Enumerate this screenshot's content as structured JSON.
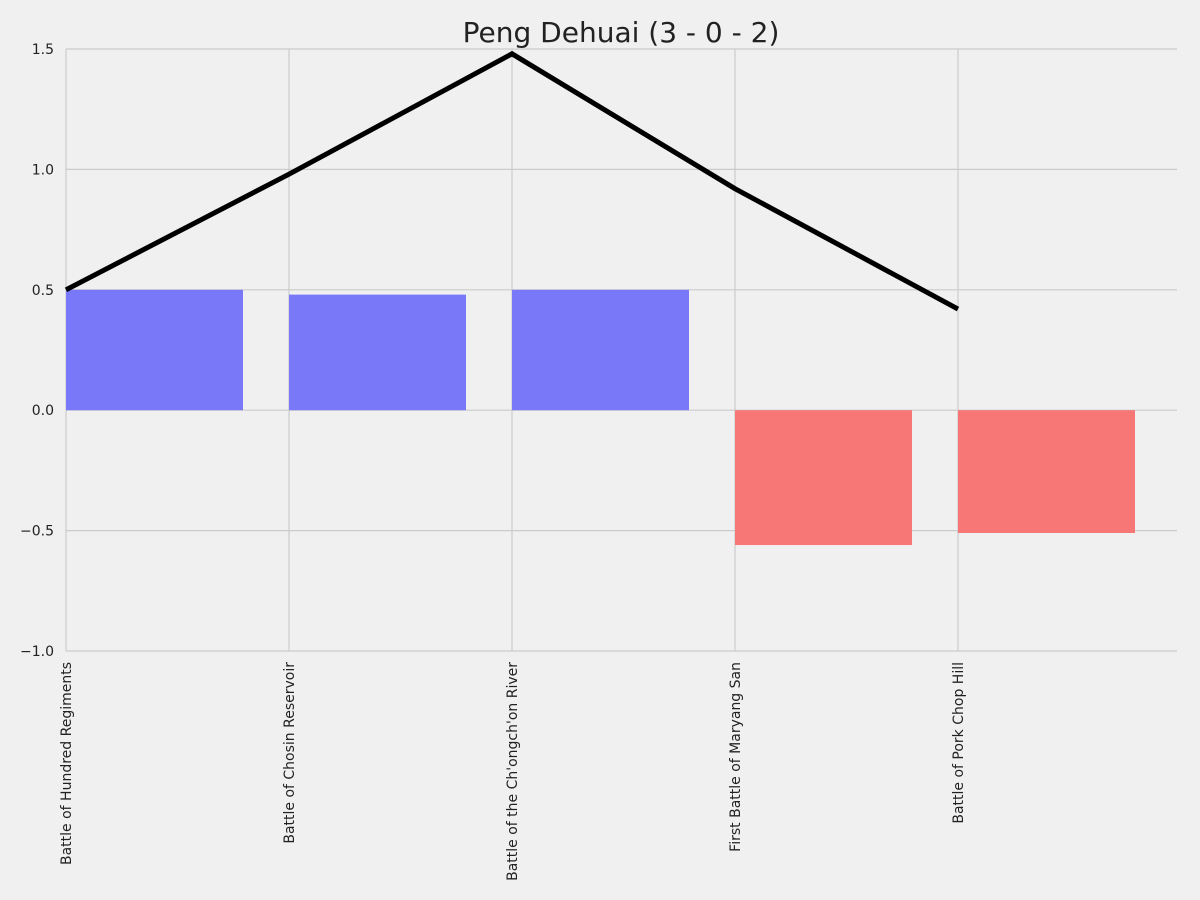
{
  "chart_data": {
    "type": "bar",
    "title": "Peng Dehuai (3 - 0 - 2)",
    "xlabel": "",
    "ylabel": "",
    "ylim": [
      -1.0,
      1.5
    ],
    "yticks": [
      1.5,
      1.0,
      0.5,
      0.0,
      -0.5,
      -1.0
    ],
    "ytick_labels": [
      "1.5",
      "1.0",
      "0.5",
      "0.0",
      "−0.5",
      "−1.0"
    ],
    "grid": true,
    "categories": [
      "Battle of Hundred Regiments",
      "Battle of Chosin Reservoir",
      "Battle of the Ch'ongch'on River",
      "First Battle of Maryang San",
      "Battle of Pork Chop Hill"
    ],
    "bar_values": [
      0.5,
      0.48,
      0.5,
      -0.56,
      -0.51
    ],
    "bar_colors": [
      "#7878f8",
      "#7878f8",
      "#7878f8",
      "#f77777",
      "#f77777"
    ],
    "line_values": [
      0.5,
      0.98,
      1.48,
      0.92,
      0.42
    ],
    "line_color": "#000000",
    "colors": {
      "win": "#7878f8",
      "loss": "#f77777",
      "background": "#f0f0f0",
      "grid": "#cbcbcb"
    }
  }
}
